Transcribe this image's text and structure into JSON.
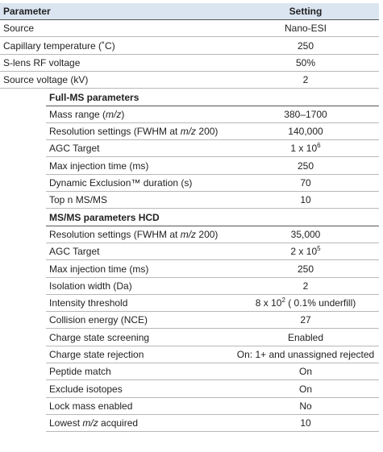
{
  "header": {
    "parameter": "Parameter",
    "setting": "Setting"
  },
  "rows": [
    {
      "parameter": "Source",
      "setting": "Nano-ESI"
    },
    {
      "parameter": "Capillary temperature (˚C)",
      "setting": "250"
    },
    {
      "parameter": "S-lens RF voltage",
      "setting": "50%"
    },
    {
      "parameter": "Source voltage (kV)",
      "setting": "2"
    }
  ],
  "sections": [
    {
      "title": "Full-MS parameters",
      "rows": [
        {
          "parameter": [
            {
              "text": "Mass range ("
            },
            {
              "text": "m/z",
              "italic": true
            },
            {
              "text": ")"
            }
          ],
          "setting": "380–1700"
        },
        {
          "parameter": [
            {
              "text": "Resolution settings (FWHM at "
            },
            {
              "text": "m/z",
              "italic": true
            },
            {
              "text": " 200)"
            }
          ],
          "setting": "140,000"
        },
        {
          "parameter": "AGC Target",
          "setting": [
            {
              "text": "1 x 10"
            },
            {
              "text": "6",
              "sup": true
            }
          ]
        },
        {
          "parameter": "Max injection time (ms)",
          "setting": "250"
        },
        {
          "parameter": "Dynamic Exclusion™ duration (s)",
          "setting": "70"
        },
        {
          "parameter": "Top n MS/MS",
          "setting": "10"
        }
      ]
    },
    {
      "title": "MS/MS parameters HCD",
      "rows": [
        {
          "parameter": [
            {
              "text": "Resolution settings (FWHM at "
            },
            {
              "text": "m/z",
              "italic": true
            },
            {
              "text": " 200)"
            }
          ],
          "setting": "35,000"
        },
        {
          "parameter": "AGC Target",
          "setting": [
            {
              "text": "2 x 10"
            },
            {
              "text": "5",
              "sup": true
            }
          ]
        },
        {
          "parameter": "Max injection time (ms)",
          "setting": "250"
        },
        {
          "parameter": "Isolation width (Da)",
          "setting": "2"
        },
        {
          "parameter": "Intensity threshold",
          "setting": [
            {
              "text": "8 x 10"
            },
            {
              "text": "2",
              "sup": true
            },
            {
              "text": " ( 0.1% underfill)"
            }
          ]
        },
        {
          "parameter": "Collision energy (NCE)",
          "setting": "27"
        },
        {
          "parameter": "Charge state screening",
          "setting": "Enabled"
        },
        {
          "parameter": "Charge state rejection",
          "setting": "On: 1+ and unassigned rejected"
        },
        {
          "parameter": "Peptide match",
          "setting": "On"
        },
        {
          "parameter": "Exclude isotopes",
          "setting": "On"
        },
        {
          "parameter": "Lock mass enabled",
          "setting": "No"
        },
        {
          "parameter": [
            {
              "text": "Lowest "
            },
            {
              "text": "m/z",
              "italic": true
            },
            {
              "text": " acquired"
            }
          ],
          "setting": "10"
        }
      ]
    }
  ]
}
